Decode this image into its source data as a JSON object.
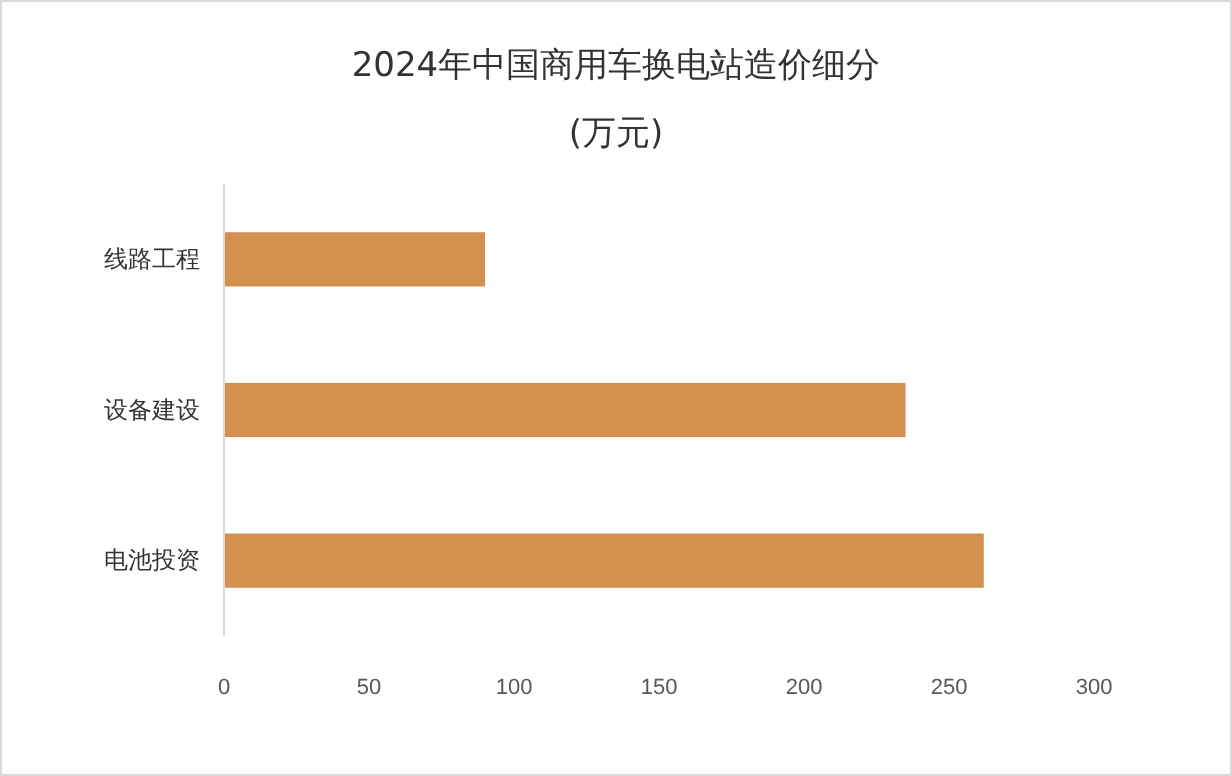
{
  "chart_data": {
    "type": "bar",
    "orientation": "horizontal",
    "title": "2024年中国商用车换电站造价细分",
    "subtitle": "(万元)",
    "categories": [
      "线路工程",
      "设备建设",
      "电池投资"
    ],
    "values": [
      90,
      235,
      262
    ],
    "color": "#d4904f",
    "xlim": [
      0,
      300
    ],
    "xticks": [
      0,
      50,
      100,
      150,
      200,
      250,
      300
    ],
    "grid": false
  }
}
